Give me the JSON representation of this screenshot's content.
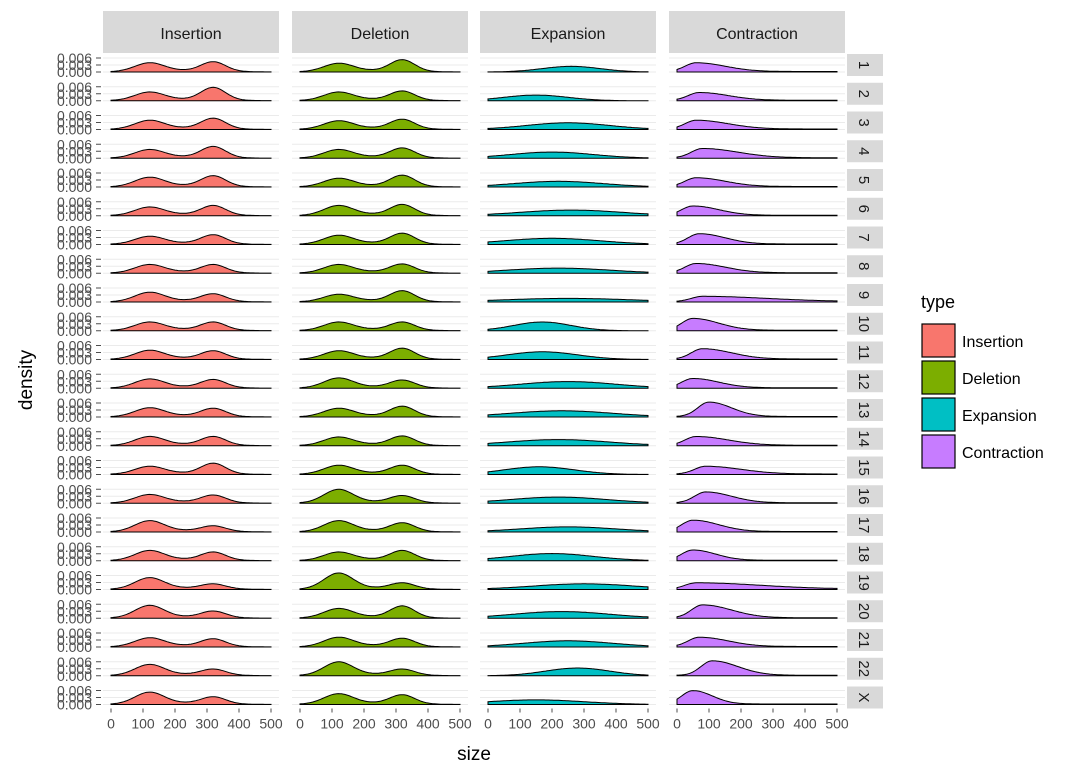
{
  "chart_data": {
    "type": "density",
    "title": "",
    "xlabel": "size",
    "ylabel": "density",
    "xlim": [
      0,
      500
    ],
    "x_ticks": [
      "0",
      "100",
      "200",
      "300",
      "400",
      "500"
    ],
    "y_ticks": [
      "0.000",
      "0.003",
      "0.006"
    ],
    "ylim": [
      0,
      0.007
    ],
    "legend": {
      "title": "type",
      "position": "right",
      "entries": [
        "Insertion",
        "Deletion",
        "Expansion",
        "Contraction"
      ]
    },
    "colors": {
      "Insertion": "#F8766D",
      "Deletion": "#7CAE00",
      "Expansion": "#00BFC4",
      "Contraction": "#C77CFF",
      "strip": "#d9d9d9",
      "grid": "#ebebeb"
    },
    "facet_cols": [
      "Insertion",
      "Deletion",
      "Expansion",
      "Contraction"
    ],
    "facet_rows": [
      "1",
      "2",
      "3",
      "4",
      "5",
      "6",
      "7",
      "8",
      "9",
      "10",
      "11",
      "12",
      "13",
      "14",
      "15",
      "16",
      "17",
      "18",
      "19",
      "20",
      "21",
      "22",
      "X"
    ],
    "series": [
      {
        "name": "Insertion",
        "kind": "bimodal",
        "peaks": [
          [
            0.0032,
            0.0036
          ],
          [
            0.003,
            0.0048
          ],
          [
            0.0032,
            0.004
          ],
          [
            0.003,
            0.0042
          ],
          [
            0.0034,
            0.004
          ],
          [
            0.003,
            0.0036
          ],
          [
            0.0028,
            0.0034
          ],
          [
            0.003,
            0.003
          ],
          [
            0.0034,
            0.0028
          ],
          [
            0.003,
            0.003
          ],
          [
            0.0032,
            0.003
          ],
          [
            0.0032,
            0.003
          ],
          [
            0.0032,
            0.003
          ],
          [
            0.0032,
            0.0032
          ],
          [
            0.0028,
            0.004
          ],
          [
            0.003,
            0.0028
          ],
          [
            0.004,
            0.002
          ],
          [
            0.0036,
            0.003
          ],
          [
            0.0042,
            0.0018
          ],
          [
            0.0046,
            0.0024
          ],
          [
            0.0032,
            0.0028
          ],
          [
            0.004,
            0.0022
          ],
          [
            0.0044,
            0.0026
          ]
        ]
      },
      {
        "name": "Deletion",
        "kind": "bimodal",
        "peaks": [
          [
            0.003,
            0.0044
          ],
          [
            0.003,
            0.0034
          ],
          [
            0.003,
            0.0036
          ],
          [
            0.003,
            0.0036
          ],
          [
            0.003,
            0.0042
          ],
          [
            0.0036,
            0.004
          ],
          [
            0.0032,
            0.004
          ],
          [
            0.003,
            0.0032
          ],
          [
            0.0026,
            0.004
          ],
          [
            0.003,
            0.003
          ],
          [
            0.003,
            0.004
          ],
          [
            0.0036,
            0.0028
          ],
          [
            0.003,
            0.0038
          ],
          [
            0.003,
            0.0034
          ],
          [
            0.0032,
            0.0032
          ],
          [
            0.005,
            0.0026
          ],
          [
            0.004,
            0.0032
          ],
          [
            0.003,
            0.0036
          ],
          [
            0.006,
            0.0022
          ],
          [
            0.0034,
            0.0044
          ],
          [
            0.0034,
            0.003
          ],
          [
            0.005,
            0.0022
          ],
          [
            0.0038,
            0.0034
          ]
        ]
      },
      {
        "name": "Expansion",
        "kind": "broad",
        "params": [
          [
            0.0022,
            260,
            90
          ],
          [
            0.0022,
            150,
            100
          ],
          [
            0.0026,
            250,
            130
          ],
          [
            0.0024,
            200,
            130
          ],
          [
            0.0022,
            220,
            140
          ],
          [
            0.0022,
            260,
            160
          ],
          [
            0.0024,
            200,
            150
          ],
          [
            0.002,
            220,
            160
          ],
          [
            0.0014,
            250,
            200
          ],
          [
            0.0034,
            170,
            90
          ],
          [
            0.003,
            170,
            110
          ],
          [
            0.0026,
            250,
            150
          ],
          [
            0.0024,
            230,
            160
          ],
          [
            0.0024,
            220,
            160
          ],
          [
            0.003,
            160,
            110
          ],
          [
            0.0024,
            220,
            150
          ],
          [
            0.002,
            250,
            150
          ],
          [
            0.0028,
            200,
            130
          ],
          [
            0.0022,
            300,
            160
          ],
          [
            0.0026,
            230,
            150
          ],
          [
            0.0024,
            250,
            140
          ],
          [
            0.003,
            280,
            100
          ],
          [
            0.0018,
            150,
            150
          ]
        ]
      },
      {
        "name": "Contraction",
        "kind": "skewed",
        "params": [
          [
            0.0034,
            60,
            90
          ],
          [
            0.003,
            70,
            90
          ],
          [
            0.0034,
            60,
            100
          ],
          [
            0.0036,
            80,
            110
          ],
          [
            0.0034,
            60,
            90
          ],
          [
            0.0036,
            50,
            80
          ],
          [
            0.004,
            70,
            80
          ],
          [
            0.0036,
            60,
            90
          ],
          [
            0.002,
            80,
            200
          ],
          [
            0.0046,
            50,
            80
          ],
          [
            0.004,
            80,
            90
          ],
          [
            0.0036,
            50,
            80
          ],
          [
            0.0056,
            100,
            70
          ],
          [
            0.0034,
            60,
            100
          ],
          [
            0.003,
            90,
            110
          ],
          [
            0.0042,
            90,
            80
          ],
          [
            0.0044,
            50,
            80
          ],
          [
            0.004,
            50,
            70
          ],
          [
            0.0024,
            60,
            200
          ],
          [
            0.005,
            80,
            90
          ],
          [
            0.0036,
            70,
            90
          ],
          [
            0.0056,
            110,
            80
          ],
          [
            0.0052,
            50,
            60
          ]
        ]
      }
    ]
  }
}
